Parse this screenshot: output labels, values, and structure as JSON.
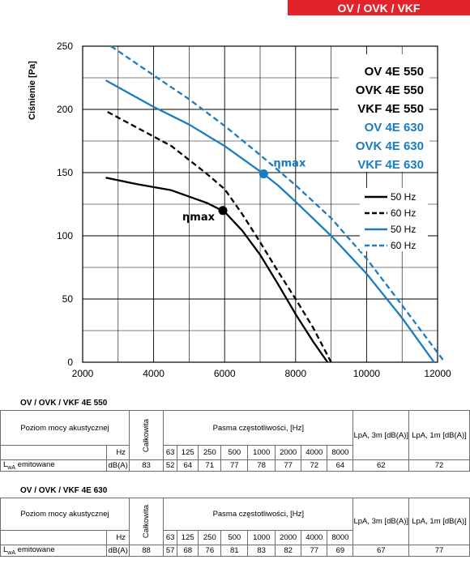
{
  "header": {
    "title": "OV / OVK / VKF"
  },
  "chart_data": {
    "type": "line",
    "ylabel": "Ciśnienie [Pa]",
    "xlabel": "",
    "xlim": [
      2000,
      12000
    ],
    "ylim": [
      0,
      250
    ],
    "x_ticks": [
      "2000",
      "4000",
      "6000",
      "8000",
      "10000",
      "12000"
    ],
    "y_ticks": [
      "0",
      "50",
      "100",
      "150",
      "200",
      "250"
    ],
    "grid": true,
    "model_labels": [
      {
        "text": "OV 4E 550",
        "color": "#000000"
      },
      {
        "text": "OVK 4E 550",
        "color": "#000000"
      },
      {
        "text": "VKF 4E 550",
        "color": "#000000"
      },
      {
        "text": "OV 4E 630",
        "color": "#1a7cc1"
      },
      {
        "text": "OVK 4E 630",
        "color": "#1a7cc1"
      },
      {
        "text": "VKF 4E 630",
        "color": "#1a7cc1"
      }
    ],
    "legend": {
      "placement": "right",
      "entries": [
        {
          "label": "50 Hz",
          "color": "#000000",
          "dashed": false
        },
        {
          "label": "60 Hz",
          "color": "#000000",
          "dashed": true
        },
        {
          "label": "50 Hz",
          "color": "#1a7cc1",
          "dashed": false
        },
        {
          "label": "60 Hz",
          "color": "#1a7cc1",
          "dashed": true
        }
      ]
    },
    "series": [
      {
        "color": "#000000",
        "dashed": false,
        "points": [
          [
            2650,
            146
          ],
          [
            3500,
            141
          ],
          [
            4500,
            136
          ],
          [
            5500,
            126
          ],
          [
            6000,
            119
          ],
          [
            6500,
            104
          ],
          [
            7000,
            85
          ],
          [
            7500,
            62
          ],
          [
            8000,
            38
          ],
          [
            8500,
            16
          ],
          [
            8900,
            0
          ]
        ]
      },
      {
        "color": "#000000",
        "dashed": true,
        "points": [
          [
            2700,
            198
          ],
          [
            3500,
            186
          ],
          [
            4500,
            171
          ],
          [
            5500,
            149
          ],
          [
            6000,
            137
          ],
          [
            6500,
            117
          ],
          [
            7000,
            95
          ],
          [
            7500,
            72
          ],
          [
            8000,
            50
          ],
          [
            8500,
            27
          ],
          [
            9000,
            0
          ]
        ]
      },
      {
        "color": "#1a7cc1",
        "dashed": false,
        "points": [
          [
            2650,
            223
          ],
          [
            4000,
            202
          ],
          [
            5000,
            188
          ],
          [
            6000,
            171
          ],
          [
            7000,
            151
          ],
          [
            7500,
            140
          ],
          [
            8000,
            127
          ],
          [
            9000,
            100
          ],
          [
            10000,
            70
          ],
          [
            11000,
            35
          ],
          [
            11900,
            0
          ]
        ]
      },
      {
        "color": "#1a7cc1",
        "dashed": true,
        "points": [
          [
            2800,
            250
          ],
          [
            4000,
            227
          ],
          [
            5000,
            208
          ],
          [
            6000,
            187
          ],
          [
            7000,
            164
          ],
          [
            7500,
            152
          ],
          [
            8000,
            140
          ],
          [
            9000,
            114
          ],
          [
            10000,
            82
          ],
          [
            11000,
            45
          ],
          [
            12200,
            0
          ]
        ]
      }
    ],
    "markers": [
      {
        "x": 5950,
        "y": 120,
        "color": "#000000",
        "label": "ηmax",
        "label_side": "left"
      },
      {
        "x": 7100,
        "y": 149,
        "color": "#1a7cc1",
        "label": "ηmax",
        "label_side": "right"
      }
    ]
  },
  "tables": [
    {
      "title": "OV / OVK / VKF 4E 550",
      "row_label": "Poziom mocy akustycznej",
      "total_label": "Całkowita",
      "bands_label": "Pasma częstotliwości, [Hz]",
      "lpa3_label": "LpA, 3m [dB(A)]",
      "lpa1_label": "LpA, 1m [dB(A)]",
      "unit_hz": "Hz",
      "frequencies": [
        "63",
        "125",
        "250",
        "500",
        "1000",
        "2000",
        "4000",
        "8000"
      ],
      "lwa_prefix": "L",
      "lwa_sub": "wA",
      "lwa_suffix": " emitowane",
      "unit_db": "dB(A)",
      "total": "83",
      "values": [
        "52",
        "64",
        "71",
        "77",
        "78",
        "77",
        "72",
        "64"
      ],
      "lpa3": "62",
      "lpa1": "72"
    },
    {
      "title": "OV / OVK / VKF 4E 630",
      "row_label": "Poziom mocy akustycznej",
      "total_label": "Całkowita",
      "bands_label": "Pasma częstotliwości, [Hz]",
      "lpa3_label": "LpA, 3m [dB(A)]",
      "lpa1_label": "LpA, 1m [dB(A)]",
      "unit_hz": "Hz",
      "frequencies": [
        "63",
        "125",
        "250",
        "500",
        "1000",
        "2000",
        "4000",
        "8000"
      ],
      "lwa_prefix": "L",
      "lwa_sub": "wA",
      "lwa_suffix": " emitowane",
      "unit_db": "dB(A)",
      "total": "88",
      "values": [
        "57",
        "68",
        "76",
        "81",
        "83",
        "82",
        "77",
        "69"
      ],
      "lpa3": "67",
      "lpa1": "77"
    }
  ]
}
